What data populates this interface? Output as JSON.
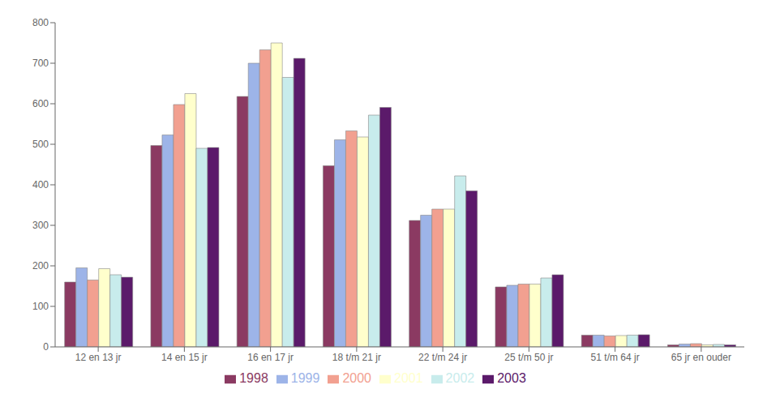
{
  "chart_data": {
    "type": "bar",
    "categories": [
      "12 en 13 jr",
      "14 en 15 jr",
      "16 en 17 jr",
      "18 t/m 21 jr",
      "22 t/m 24 jr",
      "25 t/m 50 jr",
      "51 t/m 64 jr",
      "65 jr en ouder"
    ],
    "series": [
      {
        "name": "1998",
        "color": "#8B3A62",
        "values": [
          160,
          497,
          618,
          447,
          312,
          148,
          29,
          5
        ]
      },
      {
        "name": "1999",
        "color": "#9DB4E8",
        "values": [
          195,
          523,
          700,
          511,
          325,
          152,
          29,
          7
        ]
      },
      {
        "name": "2000",
        "color": "#F2A090",
        "values": [
          165,
          598,
          733,
          533,
          340,
          155,
          27,
          8
        ]
      },
      {
        "name": "2001",
        "color": "#FFFFCC",
        "values": [
          193,
          625,
          750,
          518,
          340,
          155,
          28,
          5
        ]
      },
      {
        "name": "2002",
        "color": "#C8ECEC",
        "values": [
          178,
          490,
          665,
          572,
          422,
          170,
          29,
          6
        ]
      },
      {
        "name": "2003",
        "color": "#5B1A6A",
        "values": [
          172,
          492,
          712,
          591,
          385,
          178,
          30,
          5
        ]
      }
    ],
    "ylim": [
      0,
      800
    ],
    "yticks": [
      0,
      100,
      200,
      300,
      400,
      500,
      600,
      700,
      800
    ],
    "grid": false,
    "legend": "bottom"
  }
}
